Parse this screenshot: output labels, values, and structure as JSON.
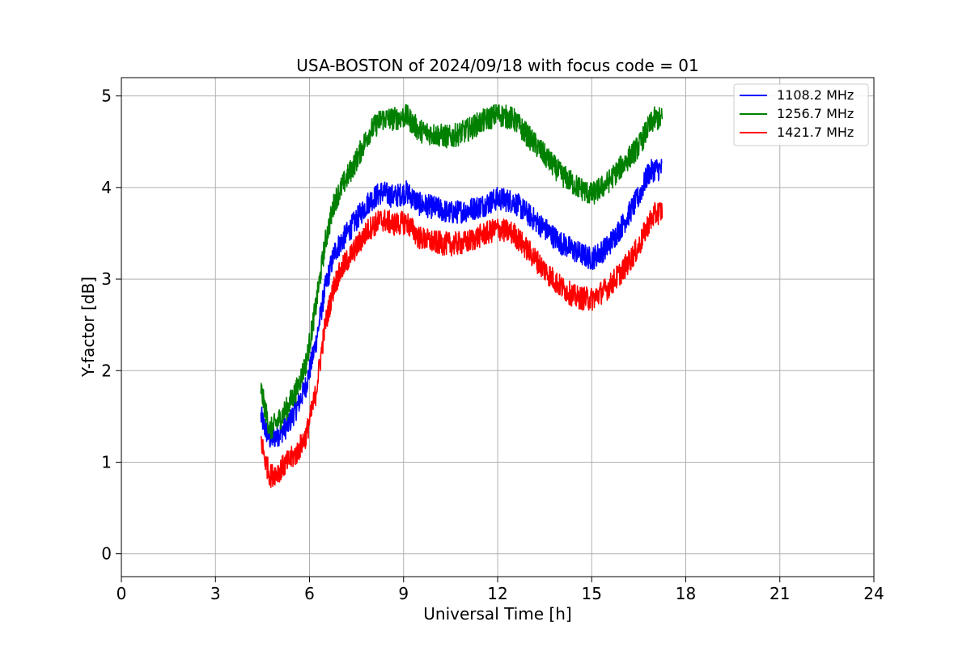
{
  "chart_data": {
    "type": "line",
    "title": "USA-BOSTON of 2024/09/18 with focus code = 01",
    "xlabel": "Universal Time [h]",
    "ylabel": "Y-factor [dB]",
    "xlim": [
      0,
      24
    ],
    "ylim": [
      -0.25,
      5.2
    ],
    "xticks": [
      0,
      3,
      6,
      9,
      12,
      15,
      18,
      21,
      24
    ],
    "yticks": [
      0,
      1,
      2,
      3,
      4,
      5
    ],
    "grid": true,
    "legend_position": "upper-right",
    "series": [
      {
        "name": "1108.2 MHz",
        "color": "#0000ff",
        "noise": 0.13,
        "x": [
          4.45,
          4.6,
          4.75,
          5.0,
          5.3,
          5.6,
          5.9,
          6.2,
          6.5,
          6.8,
          7.1,
          7.5,
          7.9,
          8.3,
          8.7,
          9.1,
          9.5,
          10.0,
          10.5,
          11.0,
          11.5,
          12.0,
          12.5,
          13.0,
          13.5,
          14.0,
          14.5,
          15.0,
          15.5,
          16.0,
          16.5,
          16.8,
          17.0,
          17.25
        ],
        "y": [
          1.5,
          1.35,
          1.25,
          1.3,
          1.4,
          1.6,
          1.85,
          2.3,
          2.9,
          3.3,
          3.45,
          3.65,
          3.85,
          3.95,
          3.9,
          3.95,
          3.82,
          3.78,
          3.72,
          3.75,
          3.8,
          3.88,
          3.85,
          3.7,
          3.55,
          3.4,
          3.3,
          3.22,
          3.35,
          3.6,
          3.9,
          4.15,
          4.2,
          4.2
        ]
      },
      {
        "name": "1256.7 MHz",
        "color": "#008000",
        "noise": 0.13,
        "x": [
          4.45,
          4.6,
          4.75,
          5.0,
          5.3,
          5.6,
          5.9,
          6.2,
          6.5,
          6.8,
          7.1,
          7.5,
          7.9,
          8.3,
          8.7,
          9.1,
          9.5,
          10.0,
          10.5,
          11.0,
          11.5,
          12.0,
          12.5,
          13.0,
          13.5,
          14.0,
          14.5,
          15.0,
          15.5,
          16.0,
          16.5,
          16.8,
          17.0,
          17.25
        ],
        "y": [
          1.8,
          1.55,
          1.35,
          1.45,
          1.6,
          1.8,
          2.1,
          2.7,
          3.4,
          3.85,
          4.05,
          4.3,
          4.6,
          4.75,
          4.75,
          4.78,
          4.62,
          4.58,
          4.55,
          4.62,
          4.72,
          4.8,
          4.75,
          4.55,
          4.35,
          4.15,
          4.02,
          3.92,
          4.05,
          4.25,
          4.45,
          4.65,
          4.75,
          4.75
        ]
      },
      {
        "name": "1421.7 MHz",
        "color": "#ff0000",
        "noise": 0.13,
        "x": [
          4.45,
          4.6,
          4.75,
          5.0,
          5.3,
          5.6,
          5.9,
          6.2,
          6.5,
          6.8,
          7.1,
          7.5,
          7.9,
          8.3,
          8.7,
          9.1,
          9.5,
          10.0,
          10.5,
          11.0,
          11.5,
          12.0,
          12.5,
          13.0,
          13.5,
          14.0,
          14.5,
          15.0,
          15.5,
          16.0,
          16.5,
          16.8,
          17.0,
          17.25
        ],
        "y": [
          1.25,
          1.0,
          0.85,
          0.9,
          1.0,
          1.1,
          1.3,
          1.75,
          2.5,
          2.95,
          3.15,
          3.35,
          3.55,
          3.65,
          3.6,
          3.62,
          3.45,
          3.4,
          3.38,
          3.4,
          3.48,
          3.55,
          3.5,
          3.3,
          3.1,
          2.92,
          2.8,
          2.78,
          2.9,
          3.1,
          3.35,
          3.6,
          3.7,
          3.75
        ]
      }
    ]
  }
}
